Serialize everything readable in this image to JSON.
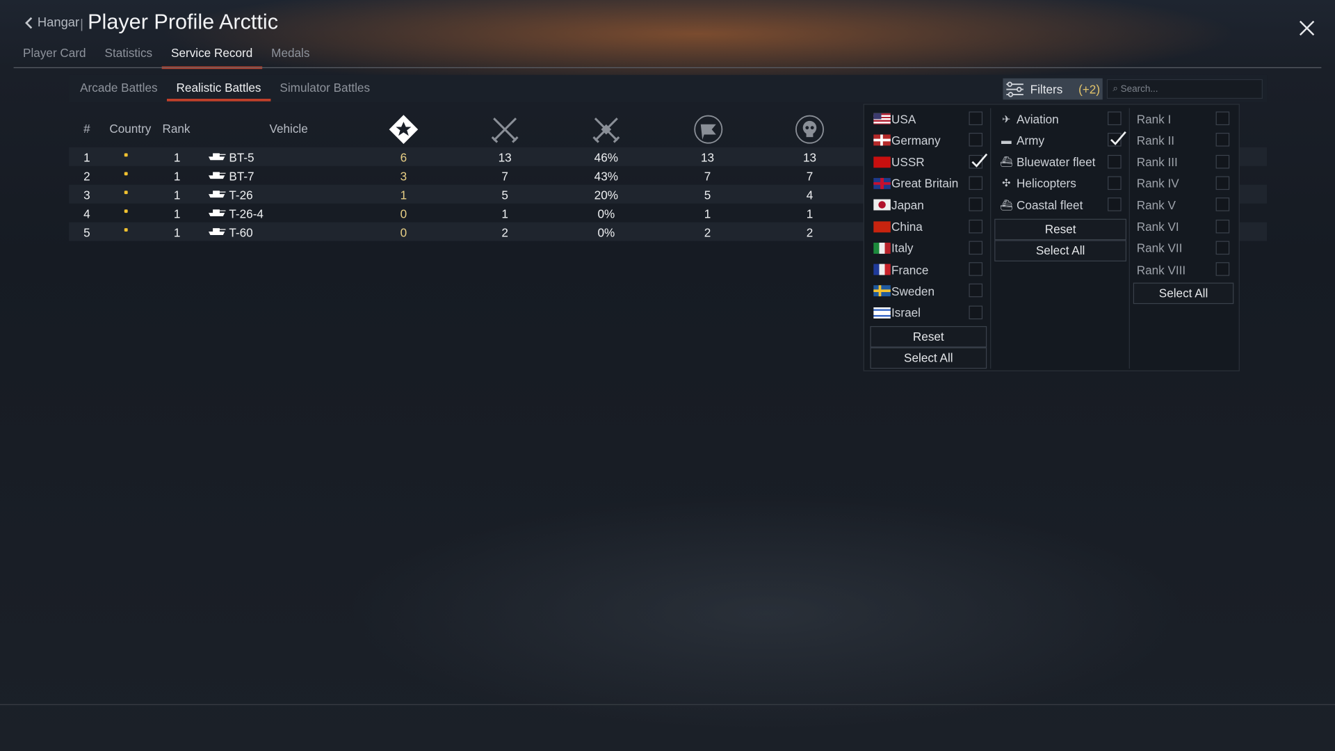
{
  "header": {
    "back_label": "Hangar",
    "title": "Player Profile Arcttic",
    "close_icon": "close-icon"
  },
  "main_tabs": [
    {
      "label": "Player Card"
    },
    {
      "label": "Statistics"
    },
    {
      "label": "Service Record",
      "active": true
    },
    {
      "label": "Medals"
    }
  ],
  "mode_tabs": [
    {
      "label": "Arcade Battles"
    },
    {
      "label": "Realistic Battles",
      "active": true
    },
    {
      "label": "Simulator Battles"
    }
  ],
  "filters": {
    "label": "Filters",
    "count": "(+2)",
    "search_placeholder": "Search..."
  },
  "table": {
    "headers": {
      "num": "#",
      "country": "Country",
      "rank": "Rank",
      "vehicle": "Vehicle"
    },
    "icon_headers": [
      "victories-icon",
      "battles-icon",
      "win-rate-icon",
      "respawns-icon",
      "deaths-icon"
    ],
    "rows": [
      {
        "num": "1",
        "country": "USSR",
        "rank": "1",
        "vehicle": "BT-5",
        "c1": "6",
        "c2": "13",
        "c3": "46%",
        "c4": "13",
        "c5": "13"
      },
      {
        "num": "2",
        "country": "USSR",
        "rank": "1",
        "vehicle": "BT-7",
        "c1": "3",
        "c2": "7",
        "c3": "43%",
        "c4": "7",
        "c5": "7"
      },
      {
        "num": "3",
        "country": "USSR",
        "rank": "1",
        "vehicle": "T-26",
        "c1": "1",
        "c2": "5",
        "c3": "20%",
        "c4": "5",
        "c5": "4"
      },
      {
        "num": "4",
        "country": "USSR",
        "rank": "1",
        "vehicle": "T-26-4",
        "c1": "0",
        "c2": "1",
        "c3": "0%",
        "c4": "1",
        "c5": "1"
      },
      {
        "num": "5",
        "country": "USSR",
        "rank": "1",
        "vehicle": "T-60",
        "c1": "0",
        "c2": "2",
        "c3": "0%",
        "c4": "2",
        "c5": "2"
      }
    ]
  },
  "filter_panel": {
    "countries": [
      {
        "label": "USA",
        "checked": false
      },
      {
        "label": "Germany",
        "checked": false
      },
      {
        "label": "USSR",
        "checked": true
      },
      {
        "label": "Great Britain",
        "checked": false
      },
      {
        "label": "Japan",
        "checked": false
      },
      {
        "label": "China",
        "checked": false
      },
      {
        "label": "Italy",
        "checked": false
      },
      {
        "label": "France",
        "checked": false
      },
      {
        "label": "Sweden",
        "checked": false
      },
      {
        "label": "Israel",
        "checked": false
      }
    ],
    "types": [
      {
        "label": "Aviation",
        "checked": false,
        "icon": "plane-icon"
      },
      {
        "label": "Army",
        "checked": true,
        "icon": "tank-icon"
      },
      {
        "label": "Bluewater fleet",
        "checked": false,
        "icon": "ship-icon"
      },
      {
        "label": "Helicopters",
        "checked": false,
        "icon": "helicopter-icon"
      },
      {
        "label": "Coastal fleet",
        "checked": false,
        "icon": "boat-icon"
      }
    ],
    "ranks": [
      {
        "label": "Rank I",
        "checked": false
      },
      {
        "label": "Rank II",
        "checked": false
      },
      {
        "label": "Rank III",
        "checked": false
      },
      {
        "label": "Rank IV",
        "checked": false
      },
      {
        "label": "Rank V",
        "checked": false
      },
      {
        "label": "Rank VI",
        "checked": false
      },
      {
        "label": "Rank VII",
        "checked": false
      },
      {
        "label": "Rank VIII",
        "checked": false
      }
    ],
    "reset_label": "Reset",
    "select_all_label": "Select All"
  },
  "colors": {
    "accent": "#c2402a",
    "gold": "#e8cf85",
    "ussr_red": "#c80f0f"
  }
}
